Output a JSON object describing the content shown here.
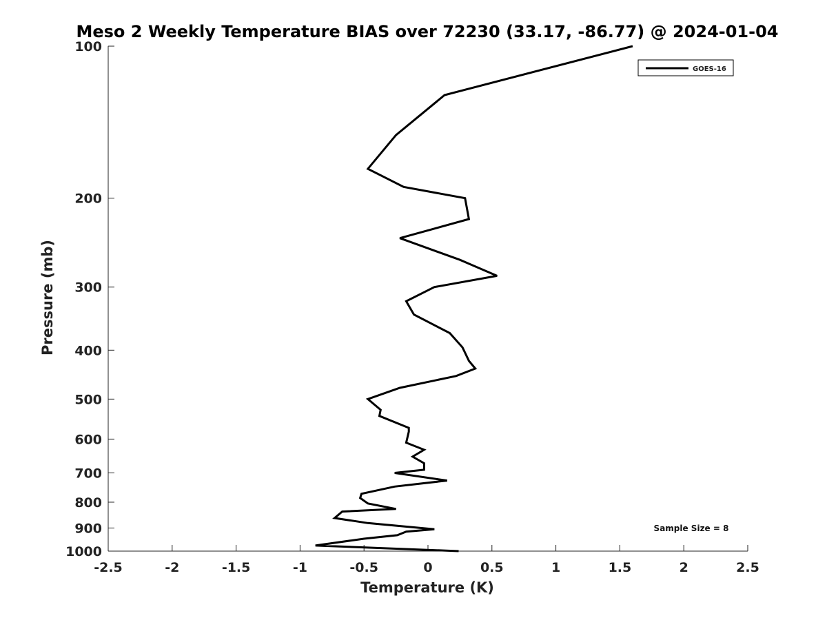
{
  "chart_data": {
    "type": "line",
    "title": "Meso 2 Weekly Temperature BIAS over 72230 (33.17, -86.77) @ 2024-01-04",
    "xlabel": "Temperature (K)",
    "ylabel": "Pressure (mb)",
    "xlim": [
      -2.5,
      2.5
    ],
    "ylim": [
      100,
      1000
    ],
    "y_scale": "log",
    "y_reversed": true,
    "grid": false,
    "legend_position": "top-right",
    "x_ticks": [
      -2.5,
      -2,
      -1.5,
      -1,
      -0.5,
      0,
      0.5,
      1,
      1.5,
      2,
      2.5
    ],
    "x_tick_labels": [
      "-2.5",
      "-2",
      "-1.5",
      "-1",
      "-0.5",
      "0",
      "0.5",
      "1",
      "1.5",
      "2",
      "2.5"
    ],
    "y_ticks": [
      100,
      200,
      300,
      400,
      500,
      600,
      700,
      800,
      900,
      1000
    ],
    "y_tick_labels": [
      "100",
      "200",
      "300",
      "400",
      "500",
      "600",
      "700",
      "800",
      "900",
      "1000"
    ],
    "annotation": "Sample Size = 8",
    "series": [
      {
        "name": "GOES-16",
        "color": "#000000",
        "points": [
          [
            1.6,
            100
          ],
          [
            0.13,
            125
          ],
          [
            -0.25,
            150
          ],
          [
            -0.47,
            175
          ],
          [
            -0.19,
            190
          ],
          [
            0.29,
            200
          ],
          [
            0.32,
            220
          ],
          [
            -0.22,
            240
          ],
          [
            0.25,
            265
          ],
          [
            0.54,
            285
          ],
          [
            0.05,
            300
          ],
          [
            -0.17,
            320
          ],
          [
            -0.11,
            340
          ],
          [
            0.17,
            370
          ],
          [
            0.27,
            395
          ],
          [
            0.32,
            420
          ],
          [
            0.37,
            435
          ],
          [
            0.22,
            450
          ],
          [
            -0.22,
            475
          ],
          [
            -0.47,
            500
          ],
          [
            -0.37,
            525
          ],
          [
            -0.38,
            540
          ],
          [
            -0.15,
            570
          ],
          [
            -0.15,
            580
          ],
          [
            -0.17,
            610
          ],
          [
            -0.03,
            630
          ],
          [
            -0.12,
            650
          ],
          [
            -0.03,
            670
          ],
          [
            -0.03,
            690
          ],
          [
            -0.26,
            700
          ],
          [
            0.15,
            725
          ],
          [
            -0.26,
            745
          ],
          [
            -0.52,
            770
          ],
          [
            -0.53,
            785
          ],
          [
            -0.47,
            805
          ],
          [
            -0.25,
            825
          ],
          [
            -0.67,
            835
          ],
          [
            -0.73,
            860
          ],
          [
            -0.47,
            880
          ],
          [
            0.05,
            905
          ],
          [
            -0.17,
            915
          ],
          [
            -0.24,
            930
          ],
          [
            -0.5,
            945
          ],
          [
            -0.88,
            975
          ],
          [
            0.24,
            1000
          ]
        ]
      }
    ]
  }
}
